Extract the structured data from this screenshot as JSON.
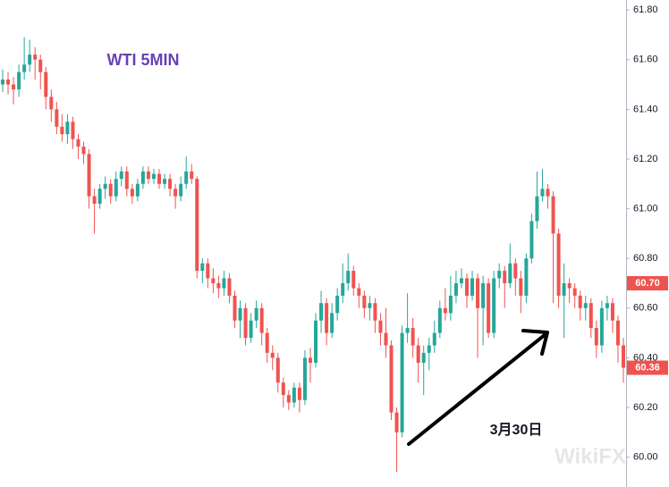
{
  "chart_data": {
    "type": "candlestick",
    "title": "WTI 5MIN",
    "annotation": "3月30日",
    "watermark": "WikiFX",
    "up_color": "#26a69a",
    "down_color": "#ef5350",
    "ylim": [
      59.88,
      61.84
    ],
    "yticks": [
      {
        "value": 60.0,
        "label": "60.00"
      },
      {
        "value": 60.2,
        "label": "60.20"
      },
      {
        "value": 60.4,
        "label": "60.40"
      },
      {
        "value": 60.6,
        "label": "60.60"
      },
      {
        "value": 60.8,
        "label": "60.80"
      },
      {
        "value": 61.0,
        "label": "61.00"
      },
      {
        "value": 61.2,
        "label": "61.20"
      },
      {
        "value": 61.4,
        "label": "61.40"
      },
      {
        "value": 61.6,
        "label": "61.60"
      },
      {
        "value": 61.8,
        "label": "61.80"
      }
    ],
    "price_markers": [
      {
        "value": 60.7,
        "label": "60.70"
      },
      {
        "value": 60.36,
        "label": "60.36"
      }
    ],
    "open": [
      61.5,
      61.52,
      61.5,
      61.48,
      61.55,
      61.58,
      61.62,
      61.6,
      61.55,
      61.45,
      61.4,
      61.33,
      61.3,
      61.35,
      61.28,
      61.25,
      61.22,
      61.05,
      61.02,
      61.08,
      61.1,
      61.05,
      61.12,
      61.15,
      61.08,
      61.05,
      61.1,
      61.15,
      61.12,
      61.14,
      61.1,
      61.12,
      61.08,
      61.05,
      61.1,
      61.15,
      61.12,
      60.75,
      60.78,
      60.72,
      60.7,
      60.68,
      60.72,
      60.65,
      60.55,
      60.6,
      60.48,
      60.55,
      60.6,
      60.5,
      60.42,
      60.4,
      60.3,
      60.25,
      60.22,
      60.28,
      60.23,
      60.4,
      60.38,
      60.55,
      60.62,
      60.5,
      60.58,
      60.65,
      60.7,
      60.75,
      60.68,
      60.65,
      60.6,
      60.62,
      60.55,
      60.5,
      60.45,
      60.18,
      60.1,
      60.5,
      60.52,
      60.45,
      60.38,
      60.42,
      60.45,
      60.5,
      60.6,
      60.58,
      60.65,
      60.7,
      60.72,
      60.65,
      60.72,
      60.6,
      60.7,
      60.5,
      60.72,
      60.75,
      60.7,
      60.78,
      60.72,
      60.65,
      60.8,
      60.95,
      61.05,
      61.08,
      61.05,
      60.9,
      60.65,
      60.7,
      60.68,
      60.65,
      60.6,
      60.62,
      60.52,
      60.45,
      60.6,
      60.62,
      60.55,
      60.45
    ],
    "high": [
      61.56,
      61.55,
      61.53,
      61.58,
      61.69,
      61.68,
      61.65,
      61.62,
      61.57,
      61.48,
      61.43,
      61.38,
      61.38,
      61.37,
      61.3,
      61.27,
      61.24,
      61.08,
      61.1,
      61.13,
      61.12,
      61.15,
      61.17,
      61.17,
      61.1,
      61.12,
      61.17,
      61.17,
      61.16,
      61.16,
      61.14,
      61.14,
      61.1,
      61.13,
      61.21,
      61.18,
      61.13,
      60.8,
      60.8,
      60.76,
      60.73,
      60.75,
      60.74,
      60.67,
      60.63,
      60.62,
      60.58,
      60.63,
      60.62,
      60.52,
      60.45,
      60.42,
      60.32,
      60.27,
      60.3,
      60.3,
      60.43,
      60.44,
      60.58,
      60.67,
      60.64,
      60.62,
      60.68,
      60.78,
      60.82,
      60.77,
      60.7,
      60.67,
      60.65,
      60.64,
      60.58,
      60.6,
      60.47,
      60.2,
      60.53,
      60.66,
      60.56,
      60.48,
      60.45,
      60.48,
      60.55,
      60.63,
      60.68,
      60.73,
      60.75,
      60.76,
      60.74,
      60.75,
      60.74,
      60.73,
      60.72,
      60.75,
      60.78,
      60.77,
      60.86,
      60.8,
      60.75,
      60.82,
      60.98,
      61.15,
      61.16,
      61.1,
      61.07,
      60.92,
      60.78,
      60.72,
      60.7,
      60.67,
      60.65,
      60.64,
      60.55,
      60.63,
      60.65,
      60.64,
      60.57,
      60.48
    ],
    "low": [
      61.47,
      61.46,
      61.42,
      61.45,
      61.52,
      61.55,
      61.52,
      61.48,
      61.4,
      61.35,
      61.3,
      61.27,
      61.26,
      61.24,
      61.2,
      61.18,
      61.0,
      60.9,
      61.0,
      61.04,
      61.02,
      61.03,
      61.09,
      61.05,
      61.02,
      61.03,
      61.08,
      61.1,
      61.1,
      61.08,
      61.08,
      61.05,
      61.0,
      61.03,
      61.08,
      61.1,
      60.72,
      60.7,
      60.68,
      60.66,
      60.64,
      60.65,
      60.62,
      60.52,
      60.48,
      60.45,
      60.46,
      60.52,
      60.45,
      60.38,
      60.35,
      60.26,
      60.2,
      60.19,
      60.2,
      60.18,
      60.21,
      60.3,
      60.36,
      60.5,
      60.45,
      60.48,
      60.55,
      60.62,
      60.67,
      60.65,
      60.6,
      60.56,
      60.55,
      60.5,
      60.45,
      60.4,
      60.15,
      59.94,
      60.08,
      60.46,
      60.4,
      60.3,
      60.25,
      60.35,
      60.42,
      60.48,
      60.55,
      60.55,
      60.62,
      60.68,
      60.6,
      60.63,
      60.4,
      60.45,
      60.48,
      60.48,
      60.68,
      60.6,
      60.68,
      60.65,
      60.58,
      60.62,
      60.78,
      60.92,
      61.03,
      61.0,
      60.62,
      60.6,
      60.48,
      60.62,
      60.6,
      60.55,
      60.55,
      60.48,
      60.4,
      60.42,
      60.55,
      60.5,
      60.38,
      60.3
    ],
    "close": [
      61.52,
      61.5,
      61.48,
      61.55,
      61.58,
      61.62,
      61.6,
      61.55,
      61.45,
      61.4,
      61.33,
      61.3,
      61.35,
      61.28,
      61.25,
      61.22,
      61.05,
      61.02,
      61.08,
      61.1,
      61.05,
      61.12,
      61.15,
      61.08,
      61.05,
      61.1,
      61.15,
      61.12,
      61.14,
      61.1,
      61.12,
      61.08,
      61.05,
      61.1,
      61.15,
      61.12,
      60.75,
      60.78,
      60.72,
      60.7,
      60.68,
      60.72,
      60.65,
      60.55,
      60.6,
      60.48,
      60.55,
      60.6,
      60.5,
      60.42,
      60.4,
      60.3,
      60.25,
      60.22,
      60.28,
      60.23,
      60.4,
      60.38,
      60.55,
      60.62,
      60.5,
      60.58,
      60.65,
      60.7,
      60.75,
      60.68,
      60.65,
      60.6,
      60.62,
      60.55,
      60.5,
      60.45,
      60.18,
      60.1,
      60.5,
      60.52,
      60.45,
      60.38,
      60.42,
      60.45,
      60.5,
      60.6,
      60.58,
      60.65,
      60.7,
      60.72,
      60.65,
      60.72,
      60.6,
      60.7,
      60.5,
      60.72,
      60.75,
      60.7,
      60.78,
      60.72,
      60.65,
      60.8,
      60.95,
      61.05,
      61.08,
      61.05,
      60.9,
      60.65,
      60.7,
      60.68,
      60.65,
      60.6,
      60.62,
      60.52,
      60.45,
      60.6,
      60.62,
      60.55,
      60.45,
      60.36
    ]
  }
}
